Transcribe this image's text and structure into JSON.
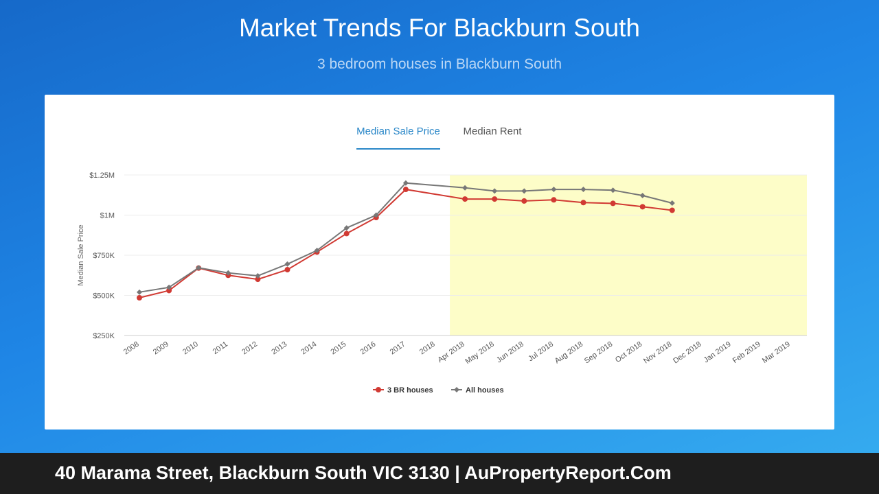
{
  "header": {
    "title": "Market Trends For Blackburn South",
    "subtitle": "3 bedroom houses in Blackburn South"
  },
  "tabs": [
    {
      "label": "Median Sale Price",
      "active": true
    },
    {
      "label": "Median Rent",
      "active": false
    }
  ],
  "chart_data": {
    "type": "line",
    "title": "",
    "ylabel": "Median Sale Price",
    "xlabel": "",
    "ylim": [
      250000,
      1250000
    ],
    "y_ticks": [
      {
        "value": 250000,
        "label": "$250K"
      },
      {
        "value": 500000,
        "label": "$500K"
      },
      {
        "value": 750000,
        "label": "$750K"
      },
      {
        "value": 1000000,
        "label": "$1M"
      },
      {
        "value": 1250000,
        "label": "$1.25M"
      }
    ],
    "categories": [
      "2008",
      "2009",
      "2010",
      "2011",
      "2012",
      "2013",
      "2014",
      "2015",
      "2016",
      "2017",
      "2018",
      "Apr 2018",
      "May 2018",
      "Jun 2018",
      "Jul 2018",
      "Aug 2018",
      "Sep 2018",
      "Oct 2018",
      "Nov 2018",
      "Dec 2018",
      "Jan 2019",
      "Feb 2019",
      "Mar 2019"
    ],
    "highlight_range": {
      "from": "Apr 2018",
      "to": "Mar 2019",
      "color": "#fdfdc8"
    },
    "grid": true,
    "legend_position": "bottom",
    "series": [
      {
        "name": "3 BR houses",
        "color": "#d13a33",
        "marker": "circle",
        "values": [
          485000,
          530000,
          670000,
          625000,
          600000,
          660000,
          770000,
          885000,
          985000,
          1160000,
          null,
          1100000,
          1100000,
          1088000,
          1095000,
          1078000,
          1073000,
          1052000,
          1030000,
          null,
          null,
          null,
          null
        ]
      },
      {
        "name": "All houses",
        "color": "#777777",
        "marker": "diamond",
        "values": [
          520000,
          550000,
          672000,
          640000,
          622000,
          695000,
          780000,
          920000,
          1000000,
          1200000,
          null,
          1170000,
          1150000,
          1150000,
          1160000,
          1160000,
          1155000,
          1122000,
          1075000,
          null,
          null,
          null,
          null
        ]
      }
    ]
  },
  "footer": {
    "text": "40 Marama Street, Blackburn South VIC 3130 | AuPropertyReport.Com"
  }
}
